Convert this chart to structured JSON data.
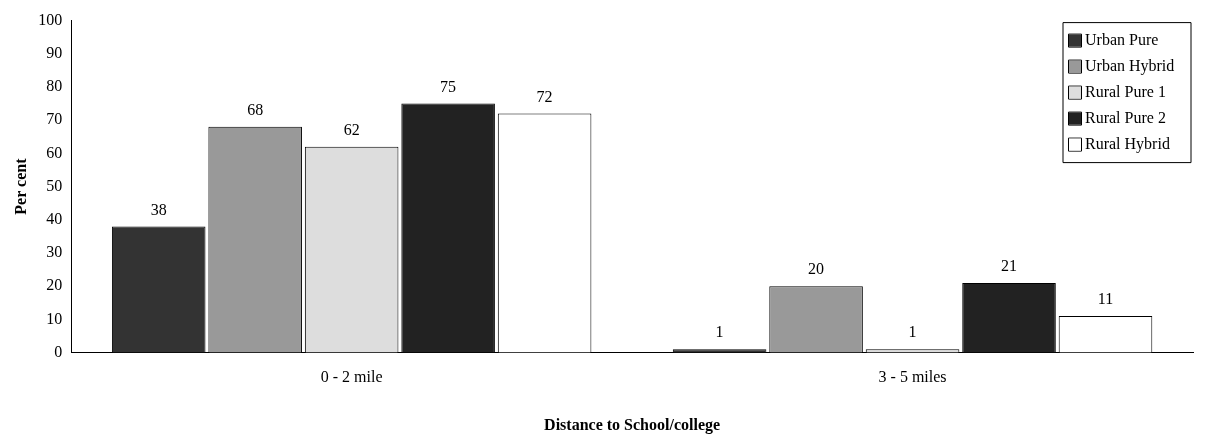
{
  "chart_data": {
    "type": "bar",
    "categories": [
      "0 - 2 mile",
      "3 - 5 miles"
    ],
    "xlabel": "Distance to School/college",
    "ylabel": "Per cent",
    "series": [
      {
        "name": "Urban Pure",
        "color": "#333333",
        "values": [
          38,
          1
        ]
      },
      {
        "name": "Urban Hybrid",
        "color": "#999999",
        "values": [
          68,
          20
        ]
      },
      {
        "name": "Rural Pure 1",
        "color": "#dddddd",
        "values": [
          62,
          1
        ]
      },
      {
        "name": "Rural Pure 2",
        "color": "#222222",
        "values": [
          75,
          21
        ]
      },
      {
        "name": "Rural Hybrid",
        "color": "#ffffff",
        "values": [
          72,
          11
        ]
      }
    ],
    "ylim": [
      0,
      100
    ],
    "yticks": [
      0,
      10,
      20,
      30,
      40,
      50,
      60,
      70,
      80,
      90,
      100
    ],
    "grid": false,
    "legend": "top right",
    "data_labels": true
  }
}
